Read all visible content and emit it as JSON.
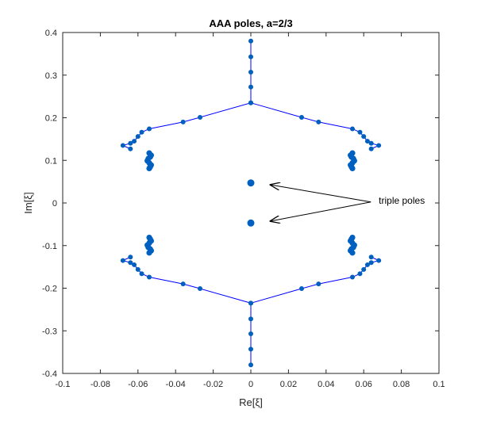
{
  "chart_data": {
    "type": "scatter",
    "title": "AAA poles, a=2/3",
    "xlabel": "Re[ξ]",
    "ylabel": "Im[ξ]",
    "xlim": [
      -0.1,
      0.1
    ],
    "ylim": [
      -0.4,
      0.4
    ],
    "xticks": [
      "-0.1",
      "-0.08",
      "-0.06",
      "-0.04",
      "-0.02",
      "0",
      "0.02",
      "0.04",
      "0.06",
      "0.08",
      "0.1"
    ],
    "yticks": [
      "-0.4",
      "-0.3",
      "-0.2",
      "-0.1",
      "0",
      "0.1",
      "0.2",
      "0.3",
      "0.4"
    ],
    "grid": false,
    "colors": {
      "line": "#0000ff",
      "marker": "#0060c0",
      "axis": "#262626"
    },
    "paths": [
      {
        "x": [
          0,
          0,
          0,
          0,
          0,
          0,
          -0.027,
          -0.036,
          -0.054,
          -0.058,
          -0.06,
          -0.062,
          -0.064,
          -0.068,
          -0.064
        ],
        "y": [
          0.38,
          0.343,
          0.307,
          0.272,
          0.235,
          0.235,
          0.201,
          0.19,
          0.174,
          0.166,
          0.156,
          0.145,
          0.14,
          0.135,
          0.127
        ]
      },
      {
        "x": [
          0,
          0.027,
          0.036,
          0.054,
          0.058,
          0.06,
          0.062,
          0.064,
          0.068,
          0.064
        ],
        "y": [
          0.235,
          0.201,
          0.19,
          0.174,
          0.166,
          0.156,
          0.145,
          0.14,
          0.135,
          0.127
        ]
      },
      {
        "x": [
          0,
          0,
          0,
          0,
          0,
          0,
          -0.027,
          -0.036,
          -0.054,
          -0.058,
          -0.06,
          -0.062,
          -0.064,
          -0.068,
          -0.064
        ],
        "y": [
          -0.38,
          -0.343,
          -0.307,
          -0.272,
          -0.235,
          -0.235,
          -0.201,
          -0.19,
          -0.174,
          -0.166,
          -0.156,
          -0.145,
          -0.14,
          -0.135,
          -0.127
        ]
      },
      {
        "x": [
          0,
          0.027,
          0.036,
          0.054,
          0.058,
          0.06,
          0.062,
          0.064,
          0.068,
          0.064
        ],
        "y": [
          -0.235,
          -0.201,
          -0.19,
          -0.174,
          -0.166,
          -0.156,
          -0.145,
          -0.14,
          -0.135,
          -0.127
        ]
      }
    ],
    "clusters": [
      {
        "x": [
          -0.054,
          -0.053,
          -0.0535,
          -0.0545,
          -0.055,
          -0.054,
          -0.053,
          -0.0535,
          -0.054
        ],
        "y": [
          0.117,
          0.112,
          0.108,
          0.104,
          0.099,
          0.094,
          0.089,
          0.085,
          0.081
        ]
      },
      {
        "x": [
          0.054,
          0.053,
          0.0535,
          0.0545,
          0.055,
          0.054,
          0.053,
          0.0535,
          0.054
        ],
        "y": [
          0.117,
          0.112,
          0.108,
          0.104,
          0.099,
          0.094,
          0.089,
          0.085,
          0.081
        ]
      },
      {
        "x": [
          -0.054,
          -0.053,
          -0.0535,
          -0.0545,
          -0.055,
          -0.054,
          -0.053,
          -0.0535,
          -0.054
        ],
        "y": [
          -0.117,
          -0.112,
          -0.108,
          -0.104,
          -0.099,
          -0.094,
          -0.089,
          -0.085,
          -0.081
        ]
      },
      {
        "x": [
          0.054,
          0.053,
          0.0535,
          0.0545,
          0.055,
          0.054,
          0.053,
          0.0535,
          0.054
        ],
        "y": [
          -0.117,
          -0.112,
          -0.108,
          -0.104,
          -0.099,
          -0.094,
          -0.089,
          -0.085,
          -0.081
        ]
      }
    ],
    "triple_poles": {
      "x": [
        0.0,
        0.0
      ],
      "y": [
        0.047,
        -0.047
      ]
    },
    "annotations": [
      {
        "text": "triple poles",
        "arrow_targets": [
          [
            0.01,
            0.043
          ],
          [
            0.01,
            -0.043
          ]
        ],
        "text_anchor": [
          0.068,
          0.006
        ]
      }
    ]
  }
}
